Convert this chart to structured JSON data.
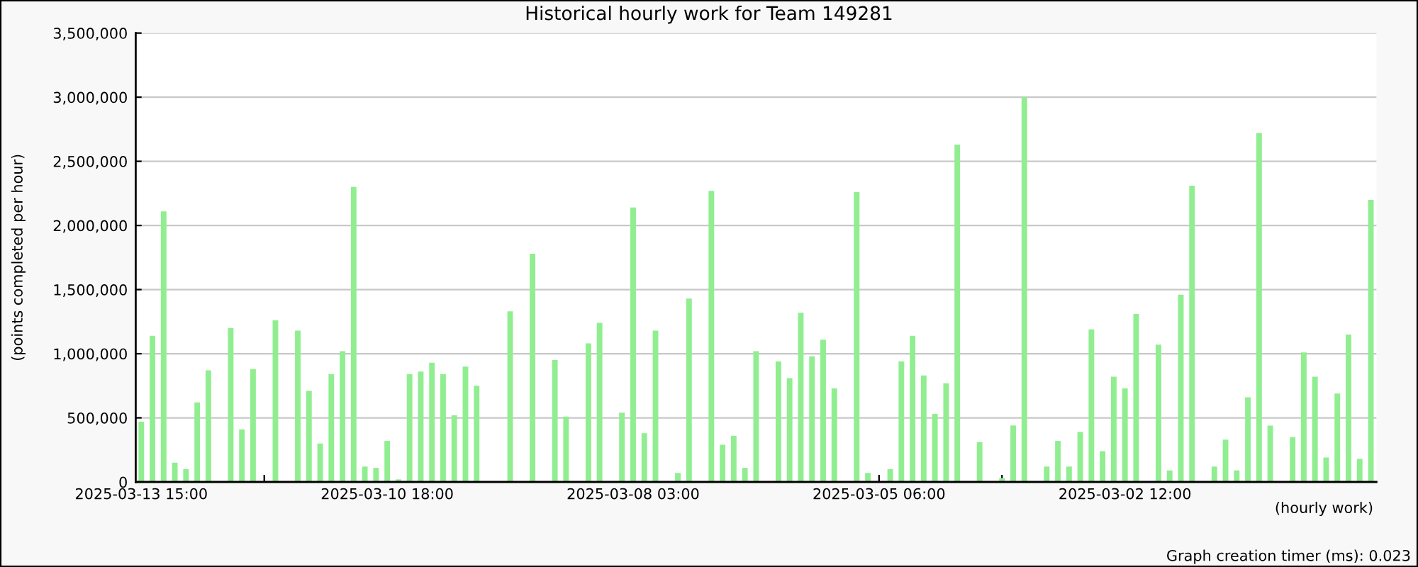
{
  "chart_data": {
    "type": "bar",
    "title": "Historical hourly work for Team 149281",
    "ylabel": "(points completed per hour)",
    "xlabel": "(hourly work)",
    "annotations": [
      "Graph creation timer (ms): 0.023"
    ],
    "categories": [
      "2025-03-13 15:00",
      null,
      null,
      null,
      null,
      null,
      null,
      null,
      null,
      null,
      null,
      null,
      null,
      null,
      null,
      null,
      null,
      null,
      null,
      null,
      null,
      null,
      "2025-03-10 18:00",
      null,
      null,
      null,
      null,
      null,
      null,
      null,
      null,
      null,
      null,
      null,
      null,
      null,
      null,
      null,
      null,
      null,
      null,
      null,
      null,
      null,
      "2025-03-08 03:00",
      null,
      null,
      null,
      null,
      null,
      null,
      null,
      null,
      null,
      null,
      null,
      null,
      null,
      null,
      null,
      null,
      null,
      null,
      null,
      null,
      null,
      "2025-03-05 06:00",
      null,
      null,
      null,
      null,
      null,
      null,
      null,
      null,
      null,
      null,
      null,
      null,
      null,
      null,
      null,
      null,
      null,
      null,
      null,
      null,
      null,
      "2025-03-02 12:00",
      null,
      null,
      null,
      null,
      null,
      null,
      null,
      null,
      null,
      null,
      null,
      null,
      null,
      null,
      null,
      null,
      null,
      null,
      null,
      null,
      null,
      null
    ],
    "values": [
      470000,
      1140000,
      2110000,
      150000,
      100000,
      620000,
      870000,
      0,
      1200000,
      410000,
      880000,
      0,
      1260000,
      0,
      1180000,
      710000,
      300000,
      840000,
      1020000,
      2300000,
      120000,
      110000,
      320000,
      20000,
      840000,
      860000,
      930000,
      840000,
      520000,
      900000,
      750000,
      0,
      0,
      1330000,
      0,
      1780000,
      0,
      950000,
      510000,
      0,
      1080000,
      1240000,
      0,
      540000,
      2140000,
      380000,
      1180000,
      0,
      70000,
      1430000,
      0,
      2270000,
      290000,
      360000,
      110000,
      1020000,
      0,
      940000,
      810000,
      1320000,
      980000,
      1110000,
      730000,
      0,
      2260000,
      70000,
      0,
      100000,
      940000,
      1140000,
      830000,
      530000,
      770000,
      2630000,
      0,
      310000,
      0,
      30000,
      440000,
      3000000,
      0,
      120000,
      320000,
      120000,
      390000,
      1190000,
      240000,
      820000,
      730000,
      1310000,
      0,
      1070000,
      90000,
      1460000,
      2310000,
      0,
      120000,
      330000,
      90000,
      660000,
      2720000,
      440000,
      0,
      350000,
      1010000,
      820000,
      190000,
      690000,
      1150000,
      180000,
      2200000
    ],
    "color": "#90ee90",
    "ylim": [
      0,
      3500000
    ],
    "yticks": [
      0,
      {
        "value": 500000,
        "label": "500,000"
      },
      {
        "value": 1000000,
        "label": "1,000,000"
      },
      {
        "value": 1500000,
        "label": "1,500,000"
      },
      {
        "value": 2000000,
        "label": "2,000,000"
      },
      {
        "value": 2500000,
        "label": "2,500,000"
      },
      {
        "value": 3000000,
        "label": "3,000,000"
      },
      {
        "value": 3500000,
        "label": "3,500,000"
      }
    ],
    "grid": "y"
  }
}
